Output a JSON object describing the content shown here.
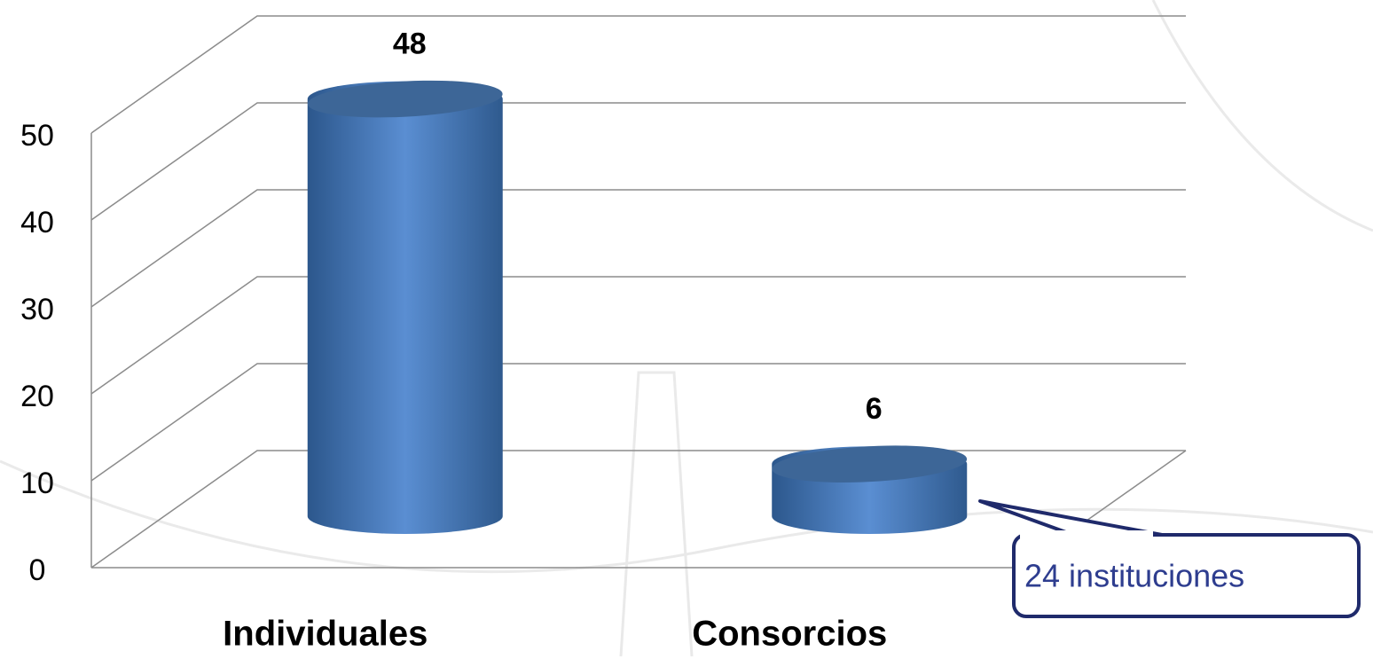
{
  "chart_data": {
    "type": "bar3d",
    "categories": [
      "Individuales",
      "Consorcios"
    ],
    "values": [
      48,
      6
    ],
    "color": "#4a7cbf",
    "ylim": [
      0,
      50
    ],
    "yticks": [
      0,
      10,
      20,
      30,
      40,
      50
    ],
    "grid": true,
    "annotation": "24 instituciones"
  }
}
